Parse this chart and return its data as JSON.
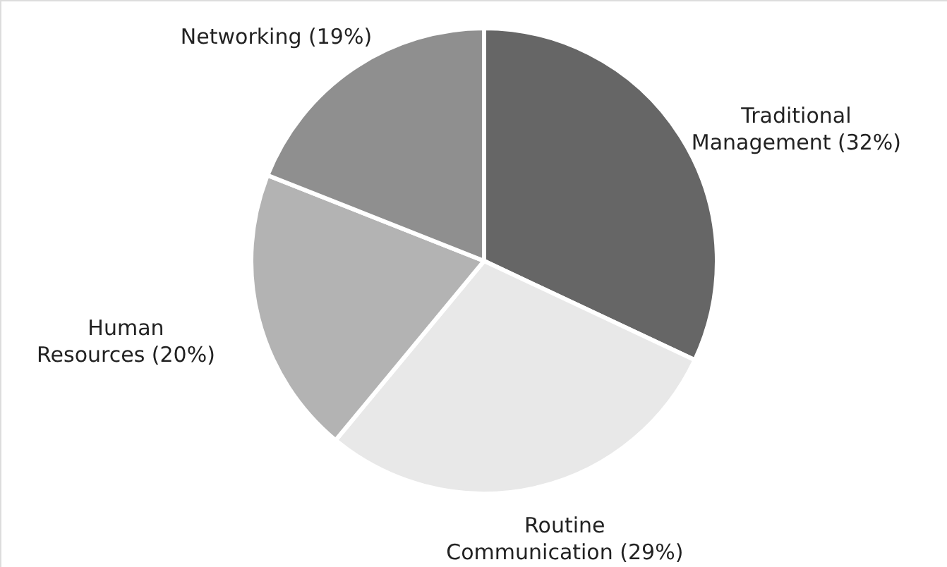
{
  "chart_data": {
    "type": "pie",
    "categories": [
      "Traditional Management",
      "Routine Communication",
      "Human Resources",
      "Networking"
    ],
    "values": [
      32,
      29,
      20,
      19
    ],
    "value_labels": [
      "(32%)",
      "(29%)",
      "(20%)",
      "(19%)"
    ],
    "colors": [
      "#666666",
      "#e8e8e8",
      "#b3b3b3",
      "#8f8f8f"
    ]
  }
}
